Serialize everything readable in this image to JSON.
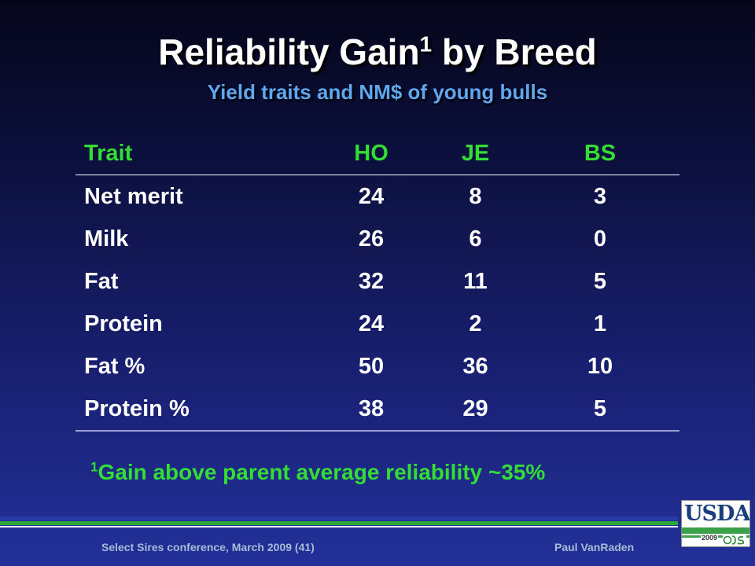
{
  "slide": {
    "title": "Reliability Gain",
    "title_sup": "1",
    "title_suffix": " by Breed",
    "subtitle": "Yield traits and NM$ of young bulls"
  },
  "table": {
    "headers": [
      "Trait",
      "HO",
      "JE",
      "BS"
    ],
    "rows": [
      [
        "Net merit",
        "24",
        "8",
        "3"
      ],
      [
        "Milk",
        "26",
        "6",
        "0"
      ],
      [
        "Fat",
        "32",
        "11",
        "5"
      ],
      [
        "Protein",
        "24",
        "2",
        "1"
      ],
      [
        "Fat %",
        "50",
        "36",
        "10"
      ],
      [
        "Protein %",
        "38",
        "29",
        "5"
      ]
    ]
  },
  "footnote": {
    "marker": "1",
    "text": "Gain above parent average reliability ~35%"
  },
  "footer": {
    "left": "Select Sires conference, March 2009 (41)",
    "right": "Paul VanRaden"
  },
  "logo": {
    "text": "USDA",
    "year": "2009",
    "mark": "aipl-logo"
  },
  "colors": {
    "title": "#ffffff",
    "subtitle": "#5fa8f0",
    "header": "#33dd33",
    "footnote": "#33dd33",
    "footer": "#a9bcd6",
    "background_top": "#05051a",
    "background_bottom": "#22309a"
  }
}
